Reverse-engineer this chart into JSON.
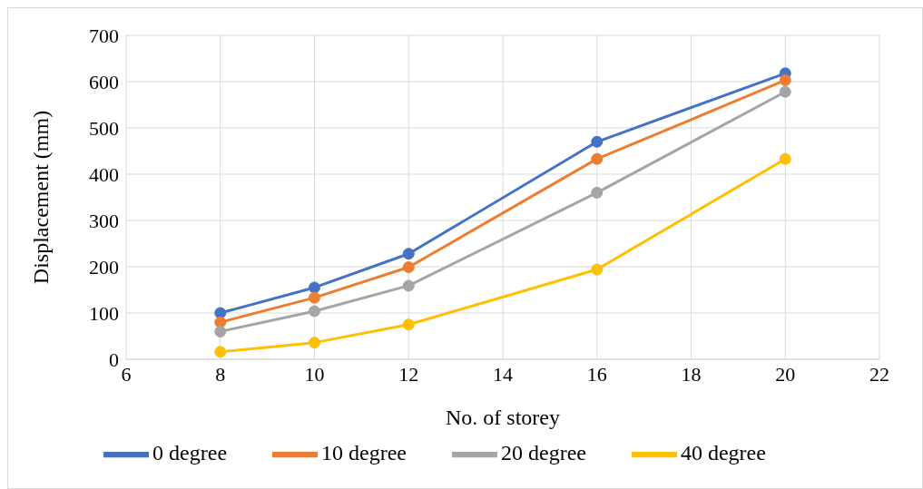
{
  "chart_data": {
    "type": "line",
    "xlabel": "No. of storey",
    "ylabel": "Displacement (mm)",
    "x": [
      8,
      10,
      12,
      16,
      20
    ],
    "series": [
      {
        "name": "0 degree",
        "color": "#4472c4",
        "values": [
          100,
          155,
          228,
          470,
          618
        ]
      },
      {
        "name": "10 degree",
        "color": "#ed7d31",
        "values": [
          80,
          133,
          199,
          433,
          603
        ]
      },
      {
        "name": "20 degree",
        "color": "#a5a5a5",
        "values": [
          60,
          104,
          159,
          360,
          578
        ]
      },
      {
        "name": "40 degree",
        "color": "#ffc000",
        "values": [
          16,
          36,
          75,
          194,
          433
        ]
      }
    ],
    "xlim": [
      6,
      22
    ],
    "xticks": [
      6,
      8,
      10,
      12,
      14,
      16,
      18,
      20,
      22
    ],
    "ylim": [
      0,
      700
    ],
    "yticks": [
      0,
      100,
      200,
      300,
      400,
      500,
      600,
      700
    ],
    "grid": true,
    "legend": "bottom",
    "marker": "circle",
    "line_style": "solid"
  }
}
